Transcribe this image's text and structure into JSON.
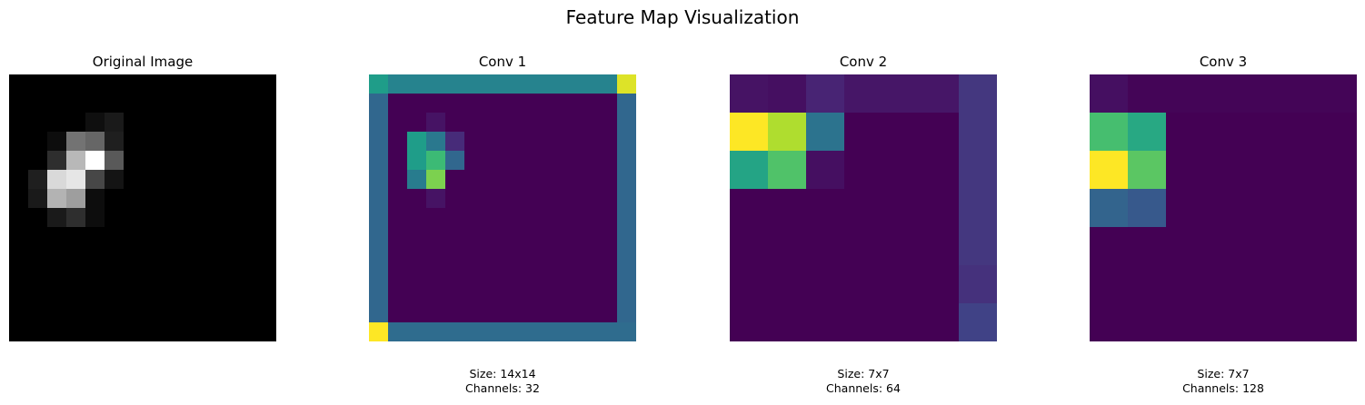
{
  "figure": {
    "title": "Feature Map Visualization"
  },
  "colors": {
    "viridis": [
      "#440154",
      "#482878",
      "#3e4989",
      "#31688e",
      "#26828e",
      "#1f9e89",
      "#35b779",
      "#6ece58",
      "#b5de2b",
      "#fde725"
    ]
  },
  "chart_data": [
    {
      "type": "heatmap",
      "title": "Original Image",
      "colormap": "gray",
      "rows": 14,
      "cols": 14,
      "values": [
        [
          0,
          0,
          0,
          0,
          0,
          0,
          0,
          0,
          0,
          0,
          0,
          0,
          0,
          0
        ],
        [
          0,
          0,
          0,
          0,
          0,
          0,
          0,
          0,
          0,
          0,
          0,
          0,
          0,
          0
        ],
        [
          0,
          0,
          0,
          0,
          0.06,
          0.1,
          0,
          0,
          0,
          0,
          0,
          0,
          0,
          0
        ],
        [
          0,
          0,
          0.05,
          0.45,
          0.4,
          0.12,
          0,
          0,
          0,
          0,
          0,
          0,
          0,
          0
        ],
        [
          0,
          0,
          0.18,
          0.72,
          1.0,
          0.35,
          0,
          0,
          0,
          0,
          0,
          0,
          0,
          0
        ],
        [
          0,
          0.12,
          0.85,
          0.9,
          0.28,
          0.08,
          0,
          0,
          0,
          0,
          0,
          0,
          0,
          0
        ],
        [
          0,
          0.1,
          0.7,
          0.62,
          0.05,
          0,
          0,
          0,
          0,
          0,
          0,
          0,
          0,
          0
        ],
        [
          0,
          0,
          0.1,
          0.18,
          0.05,
          0,
          0,
          0,
          0,
          0,
          0,
          0,
          0,
          0
        ],
        [
          0,
          0,
          0,
          0,
          0,
          0,
          0,
          0,
          0,
          0,
          0,
          0,
          0,
          0
        ],
        [
          0,
          0,
          0,
          0,
          0,
          0,
          0,
          0,
          0,
          0,
          0,
          0,
          0,
          0
        ],
        [
          0,
          0,
          0,
          0,
          0,
          0,
          0,
          0,
          0,
          0,
          0,
          0,
          0,
          0
        ],
        [
          0,
          0,
          0,
          0,
          0,
          0,
          0,
          0,
          0,
          0,
          0,
          0,
          0,
          0
        ],
        [
          0,
          0,
          0,
          0,
          0,
          0,
          0,
          0,
          0,
          0,
          0,
          0,
          0,
          0
        ],
        [
          0,
          0,
          0,
          0,
          0,
          0,
          0,
          0,
          0,
          0,
          0,
          0,
          0,
          0
        ]
      ]
    },
    {
      "type": "heatmap",
      "title": "Conv 1",
      "colormap": "viridis",
      "rows": 14,
      "cols": 14,
      "values": [
        [
          0.55,
          0.45,
          0.45,
          0.45,
          0.45,
          0.45,
          0.45,
          0.45,
          0.45,
          0.45,
          0.45,
          0.45,
          0.45,
          0.95
        ],
        [
          0.33,
          0,
          0,
          0,
          0,
          0,
          0,
          0,
          0,
          0,
          0,
          0,
          0,
          0.33
        ],
        [
          0.33,
          0,
          0,
          0.05,
          0,
          0,
          0,
          0,
          0,
          0,
          0,
          0,
          0,
          0.33
        ],
        [
          0.33,
          0,
          0.55,
          0.4,
          0.12,
          0,
          0,
          0,
          0,
          0,
          0,
          0,
          0,
          0.33
        ],
        [
          0.33,
          0,
          0.55,
          0.68,
          0.33,
          0,
          0,
          0,
          0,
          0,
          0,
          0,
          0,
          0.33
        ],
        [
          0.33,
          0,
          0.42,
          0.8,
          0,
          0,
          0,
          0,
          0,
          0,
          0,
          0,
          0,
          0.33
        ],
        [
          0.33,
          0,
          0,
          0.05,
          0,
          0,
          0,
          0,
          0,
          0,
          0,
          0,
          0,
          0.33
        ],
        [
          0.33,
          0,
          0,
          0,
          0,
          0,
          0,
          0,
          0,
          0,
          0,
          0,
          0,
          0.33
        ],
        [
          0.33,
          0,
          0,
          0,
          0,
          0,
          0,
          0,
          0,
          0,
          0,
          0,
          0,
          0.33
        ],
        [
          0.33,
          0,
          0,
          0,
          0,
          0,
          0,
          0,
          0,
          0,
          0,
          0,
          0,
          0.33
        ],
        [
          0.33,
          0,
          0,
          0,
          0,
          0,
          0,
          0,
          0,
          0,
          0,
          0,
          0,
          0.33
        ],
        [
          0.33,
          0,
          0,
          0,
          0,
          0,
          0,
          0,
          0,
          0,
          0,
          0,
          0,
          0.33
        ],
        [
          0.33,
          0,
          0,
          0,
          0,
          0,
          0,
          0,
          0,
          0,
          0,
          0,
          0,
          0.33
        ],
        [
          1.0,
          0.35,
          0.35,
          0.35,
          0.35,
          0.35,
          0.35,
          0.35,
          0.35,
          0.35,
          0.35,
          0.35,
          0.35,
          0.35
        ]
      ],
      "caption": {
        "size": "Size: 14x14",
        "channels": "Channels: 32"
      }
    },
    {
      "type": "heatmap",
      "title": "Conv 2",
      "colormap": "viridis",
      "rows": 7,
      "cols": 7,
      "values": [
        [
          0.05,
          0.04,
          0.1,
          0.06,
          0.06,
          0.06,
          0.16
        ],
        [
          1.0,
          0.88,
          0.38,
          0,
          0,
          0,
          0.16
        ],
        [
          0.58,
          0.72,
          0.04,
          0,
          0,
          0,
          0.16
        ],
        [
          0,
          0,
          0,
          0,
          0,
          0,
          0.16
        ],
        [
          0,
          0,
          0,
          0,
          0,
          0,
          0.16
        ],
        [
          0,
          0,
          0,
          0,
          0,
          0,
          0.14
        ],
        [
          0,
          0,
          0,
          0,
          0,
          0,
          0.2
        ]
      ],
      "caption": {
        "size": "Size: 7x7",
        "channels": "Channels: 64"
      }
    },
    {
      "type": "heatmap",
      "title": "Conv 3",
      "colormap": "viridis",
      "rows": 7,
      "cols": 7,
      "values": [
        [
          0.04,
          0.01,
          0.01,
          0.01,
          0.01,
          0.01,
          0.01
        ],
        [
          0.7,
          0.6,
          0,
          0,
          0,
          0,
          0
        ],
        [
          1.0,
          0.74,
          0,
          0,
          0,
          0,
          0
        ],
        [
          0.32,
          0.28,
          0,
          0,
          0,
          0,
          0
        ],
        [
          0,
          0,
          0,
          0,
          0,
          0,
          0
        ],
        [
          0,
          0,
          0,
          0,
          0,
          0,
          0
        ],
        [
          0,
          0,
          0,
          0,
          0,
          0,
          0
        ]
      ],
      "caption": {
        "size": "Size: 7x7",
        "channels": "Channels: 128"
      }
    }
  ]
}
